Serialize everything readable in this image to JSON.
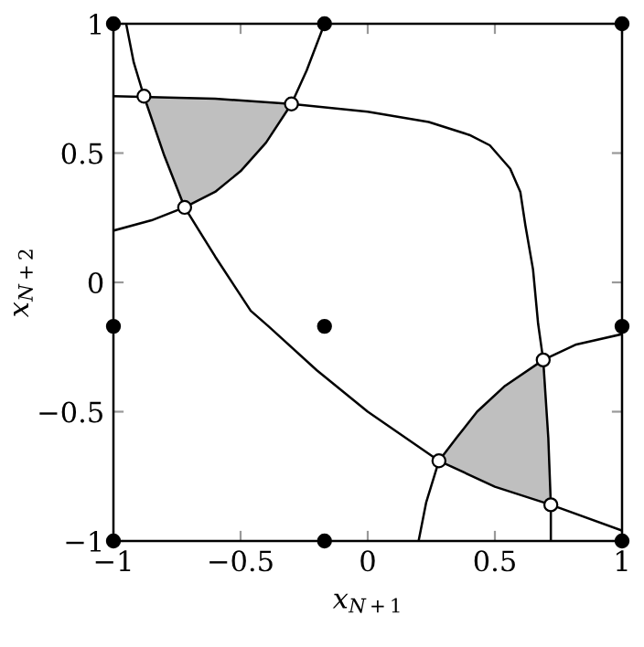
{
  "chart_data": {
    "type": "line",
    "xlabel": "x$_{N+1}$",
    "ylabel": "x$_{N+2}$",
    "xlim": [
      -1,
      1
    ],
    "ylim": [
      -1,
      1
    ],
    "xticks": [
      -1,
      -0.5,
      0,
      0.5,
      1
    ],
    "yticks": [
      -1,
      -0.5,
      0,
      0.5,
      1
    ],
    "grid": false,
    "marker": "none",
    "line_style": "solid",
    "series": [
      {
        "type": "area",
        "color": "#bfbfbf",
        "x": [
          -0.88,
          -0.6,
          -0.3,
          -0.4,
          -0.5,
          -0.6,
          -0.72,
          -0.8,
          -0.88
        ],
        "values": [
          0.72,
          0.71,
          0.69,
          0.54,
          0.43,
          0.35,
          0.29,
          0.49,
          0.72
        ]
      },
      {
        "type": "area",
        "color": "#bfbfbf",
        "x": [
          0.28,
          0.35,
          0.43,
          0.54,
          0.69,
          0.71,
          0.72,
          0.5,
          0.28
        ],
        "values": [
          -0.69,
          -0.6,
          -0.5,
          -0.4,
          -0.3,
          -0.6,
          -0.86,
          -0.79,
          -0.69
        ]
      },
      {
        "color": "#000000",
        "x": [
          -0.95,
          -0.92,
          -0.88,
          -0.8,
          -0.72,
          -0.6,
          -0.46,
          -0.39,
          -0.2,
          0,
          0.28,
          0.5,
          0.72,
          1
        ],
        "values": [
          1,
          0.85,
          0.72,
          0.49,
          0.29,
          0.1,
          -0.11,
          -0.17,
          -0.34,
          -0.5,
          -0.69,
          -0.79,
          -0.86,
          -0.96
        ]
      },
      {
        "color": "#000000",
        "x": [
          -1,
          -0.6,
          -0.3,
          0,
          0.24,
          0.4,
          0.48,
          0.56,
          0.6,
          0.62,
          0.65,
          0.67,
          0.69,
          0.71,
          0.72,
          0.72
        ],
        "values": [
          0.72,
          0.71,
          0.69,
          0.66,
          0.62,
          0.57,
          0.53,
          0.44,
          0.35,
          0.22,
          0.05,
          -0.16,
          -0.3,
          -0.6,
          -0.86,
          -1
        ]
      },
      {
        "color": "#000000",
        "x": [
          -1,
          -0.85,
          -0.72,
          -0.6,
          -0.5,
          -0.4,
          -0.3,
          -0.24,
          -0.17
        ],
        "values": [
          0.2,
          0.24,
          0.29,
          0.35,
          0.43,
          0.54,
          0.69,
          0.82,
          1
        ]
      },
      {
        "color": "#000000",
        "x": [
          0.2,
          0.23,
          0.28,
          0.35,
          0.43,
          0.54,
          0.69,
          0.82,
          1
        ],
        "values": [
          -1,
          -0.85,
          -0.69,
          -0.6,
          -0.5,
          -0.4,
          -0.3,
          -0.24,
          -0.2
        ]
      },
      {
        "type": "scatter",
        "color": "#000000",
        "marker": "circle",
        "x": [
          -1,
          -0.17,
          1,
          -1,
          -0.17,
          1,
          -1,
          -0.17,
          1
        ],
        "values": [
          1,
          1,
          1,
          -0.17,
          -0.17,
          -0.17,
          -1,
          -1,
          -1
        ]
      },
      {
        "type": "scatter",
        "color": "#ffffff",
        "marker": "circle",
        "x": [
          -0.88,
          -0.3,
          -0.72,
          0.69,
          0.28,
          0.72
        ],
        "values": [
          0.72,
          0.69,
          0.29,
          -0.3,
          -0.69,
          -0.86
        ]
      }
    ]
  }
}
